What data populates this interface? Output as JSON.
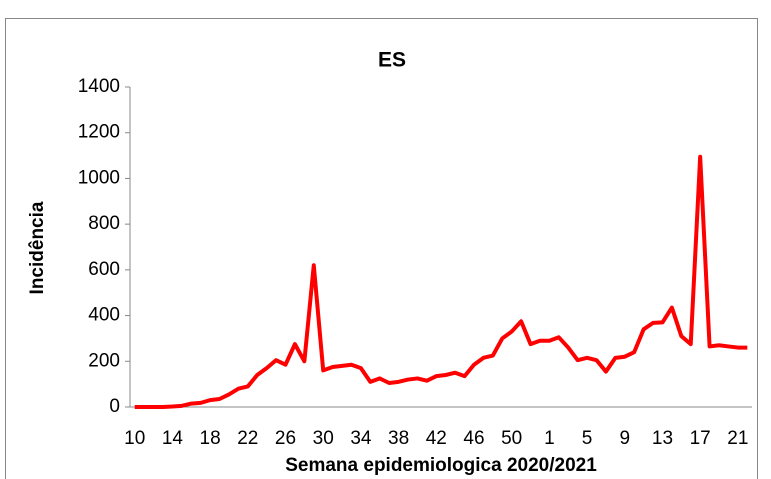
{
  "chart_data": {
    "type": "line",
    "title": "ES",
    "x_label": "Semana epidemiologica 2020/2021",
    "y_label": "Incidência",
    "categories": [
      "10",
      null,
      null,
      null,
      "14",
      null,
      null,
      null,
      "18",
      null,
      null,
      null,
      "22",
      null,
      null,
      null,
      "26",
      null,
      null,
      null,
      "30",
      null,
      null,
      null,
      "34",
      null,
      null,
      null,
      "38",
      null,
      null,
      null,
      "42",
      null,
      null,
      null,
      "46",
      null,
      null,
      null,
      "50",
      null,
      null,
      null,
      "1",
      null,
      null,
      null,
      "5",
      null,
      null,
      null,
      "9",
      null,
      null,
      null,
      "13",
      null,
      null,
      null,
      "17",
      null,
      null,
      null,
      "21",
      null
    ],
    "series": [
      {
        "name": "ES",
        "color": "#ff0000",
        "values": [
          0,
          0,
          0,
          0,
          2,
          5,
          15,
          18,
          30,
          35,
          55,
          80,
          90,
          140,
          170,
          205,
          185,
          275,
          200,
          620,
          160,
          175,
          180,
          185,
          170,
          110,
          125,
          105,
          110,
          120,
          125,
          115,
          135,
          140,
          150,
          135,
          185,
          215,
          225,
          300,
          330,
          375,
          275,
          290,
          290,
          305,
          260,
          205,
          215,
          205,
          155,
          215,
          220,
          240,
          340,
          368,
          370,
          435,
          310,
          275,
          1095,
          265,
          270,
          265,
          260,
          260
        ]
      }
    ],
    "ylim": [
      0,
      1400
    ],
    "yticks": [
      0,
      200,
      400,
      600,
      800,
      1000,
      1200,
      1400
    ]
  }
}
